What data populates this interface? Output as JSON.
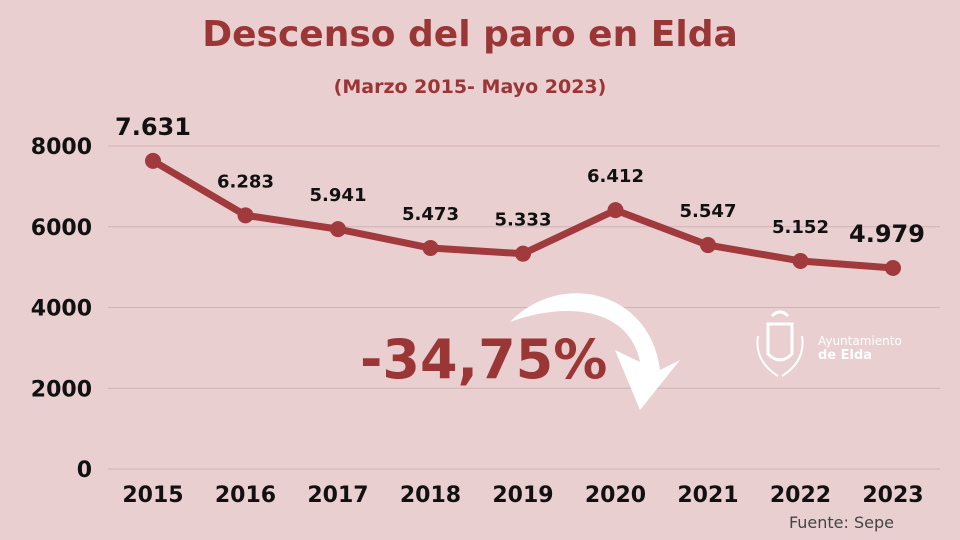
{
  "chart_data": {
    "type": "line",
    "title": "Descenso del paro en Elda",
    "subtitle": "(Marzo 2015- Mayo 2023)",
    "categories": [
      "2015",
      "2016",
      "2017",
      "2018",
      "2019",
      "2020",
      "2021",
      "2022",
      "2023"
    ],
    "values": [
      7631,
      6283,
      5941,
      5473,
      5333,
      6412,
      5547,
      5152,
      4979
    ],
    "data_labels": [
      "7.631",
      "6.283",
      "5.941",
      "5.473",
      "5.333",
      "6.412",
      "5.547",
      "5.152",
      "4.979"
    ],
    "yticks": [
      "0",
      "2000",
      "4000",
      "6000",
      "8000"
    ],
    "ylim": [
      0,
      8000
    ],
    "grid": true,
    "color": "#a03a3c",
    "annotation": "-34,75%",
    "source": "Fuente: Sepe"
  },
  "logo": {
    "line1": "Ayuntamiento",
    "line2": "de Elda"
  }
}
